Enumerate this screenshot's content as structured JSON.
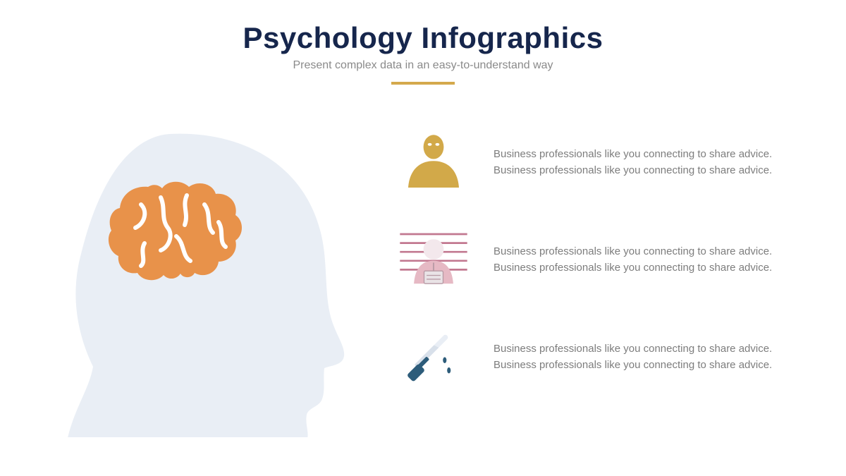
{
  "header": {
    "title": "Psychology Infographics",
    "subtitle": "Present complex data in an easy-to-understand way",
    "title_color": "#16264c",
    "title_fontsize": 42,
    "subtitle_color": "#8a8a8a",
    "subtitle_fontsize": 16,
    "divider_color": "#d4a94c",
    "divider_width": 90,
    "divider_height": 4
  },
  "background_color": "#ffffff",
  "left_visual": {
    "head_silhouette_color": "#e9eef5",
    "brain_color": "#e8924a",
    "brain_stroke_color": "#ffffff"
  },
  "items": [
    {
      "icon": "person-bust",
      "icon_color": "#d2a949",
      "text": "Business professionals like you connecting to share advice. Business professionals like you connecting to share advice.",
      "text_color": "#7d7d7d"
    },
    {
      "icon": "mugshot",
      "icon_body_color": "#e6b9c4",
      "icon_face_color": "#f3e8ec",
      "icon_line_color": "#c27890",
      "icon_plate_color": "#e9e3e6",
      "text": "Business professionals like you connecting to share advice. Business professionals like you connecting to share advice.",
      "text_color": "#7d7d7d"
    },
    {
      "icon": "knife",
      "icon_blade_color": "#e9eef5",
      "icon_handle_color": "#2d5c7a",
      "icon_drop_color": "#2d5c7a",
      "text": "Business professionals like you connecting to share advice. Business professionals like you connecting to share advice.",
      "text_color": "#7d7d7d"
    }
  ],
  "item_text_fontsize": 15
}
